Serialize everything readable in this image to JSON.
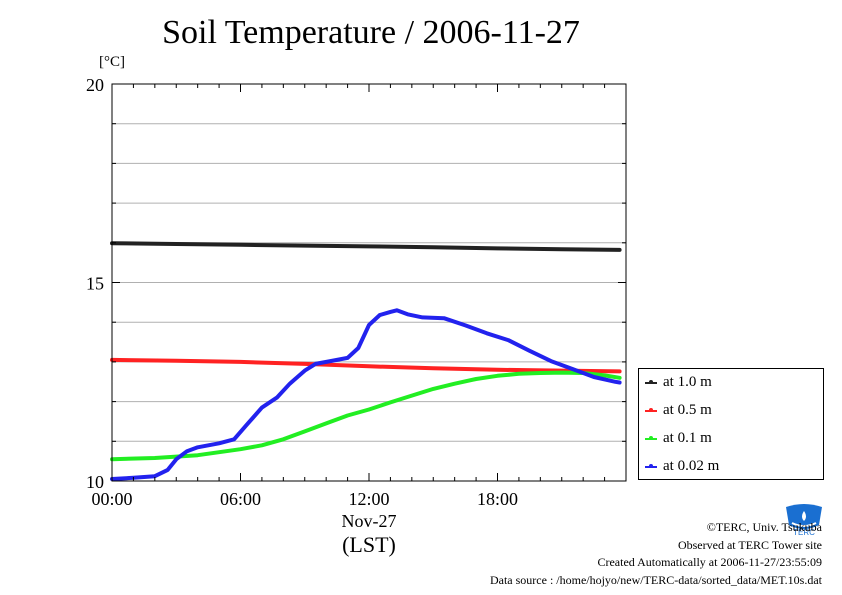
{
  "page": {
    "title": "Soil Temperature / 2006-11-27",
    "unit_label": "[°C]",
    "credits": {
      "copyright": "©TERC, Univ. Tsukuba",
      "observed": "Observed at TERC Tower site",
      "created": "Created Automatically at 2006-11-27/23:55:09",
      "source": "Data source : /home/hojyo/new/TERC-data/sorted_data/MET.10s.dat"
    },
    "logo": {
      "text": "TERC",
      "color": "#1a6fd1"
    }
  },
  "chart_data": {
    "type": "line",
    "title": "Soil Temperature / 2006-11-27",
    "ylabel": "[°C]",
    "xlabel": "Nov-27",
    "xlabel_sub": "(LST)",
    "xlim": [
      0,
      24
    ],
    "ylim": [
      10,
      20
    ],
    "x_ticks": [
      0,
      6,
      12,
      18
    ],
    "x_tick_labels": [
      "00:00",
      "06:00",
      "12:00",
      "18:00"
    ],
    "y_ticks": [
      10,
      15,
      20
    ],
    "y_tick_labels": [
      "10",
      "15",
      "20"
    ],
    "grid": true,
    "legend_placement": "right",
    "series": [
      {
        "name": "at 1.0 m",
        "color": "#222222",
        "x": [
          0,
          3,
          6,
          9,
          12,
          15,
          18,
          21,
          23.7
        ],
        "y": [
          15.99,
          15.97,
          15.95,
          15.93,
          15.91,
          15.89,
          15.86,
          15.84,
          15.82
        ]
      },
      {
        "name": "at 0.5 m",
        "color": "#ff2222",
        "x": [
          0,
          3,
          6,
          9,
          12,
          15,
          18,
          21,
          23.7
        ],
        "y": [
          13.05,
          13.03,
          13.0,
          12.95,
          12.89,
          12.84,
          12.8,
          12.78,
          12.76
        ]
      },
      {
        "name": "at 0.1 m",
        "color": "#22ee22",
        "x": [
          0,
          2,
          4,
          6,
          7,
          8,
          9,
          10,
          11,
          12,
          13,
          14,
          15,
          16,
          17,
          18,
          19,
          20,
          21,
          22,
          23,
          23.7
        ],
        "y": [
          10.55,
          10.58,
          10.65,
          10.8,
          10.9,
          11.05,
          11.25,
          11.45,
          11.65,
          11.8,
          11.98,
          12.15,
          12.32,
          12.45,
          12.57,
          12.65,
          12.7,
          12.72,
          12.73,
          12.72,
          12.66,
          12.6
        ]
      },
      {
        "name": "at 0.02 m",
        "color": "#2222ee",
        "x": [
          0,
          1,
          2,
          2.6,
          3,
          3.5,
          4,
          5,
          5.7,
          6.3,
          7,
          7.7,
          8.3,
          9,
          9.5,
          10.2,
          11,
          11.5,
          12,
          12.5,
          13,
          13.3,
          13.8,
          14.5,
          15.5,
          16.5,
          17.5,
          18.5,
          19.5,
          20.5,
          21.5,
          22.5,
          23.5,
          23.7
        ],
        "y": [
          10.05,
          10.08,
          10.12,
          10.28,
          10.55,
          10.75,
          10.85,
          10.95,
          11.05,
          11.42,
          11.85,
          12.1,
          12.45,
          12.78,
          12.95,
          13.02,
          13.1,
          13.35,
          13.93,
          14.18,
          14.26,
          14.3,
          14.2,
          14.12,
          14.1,
          13.92,
          13.72,
          13.55,
          13.28,
          13.02,
          12.82,
          12.62,
          12.5,
          12.48
        ]
      }
    ]
  }
}
